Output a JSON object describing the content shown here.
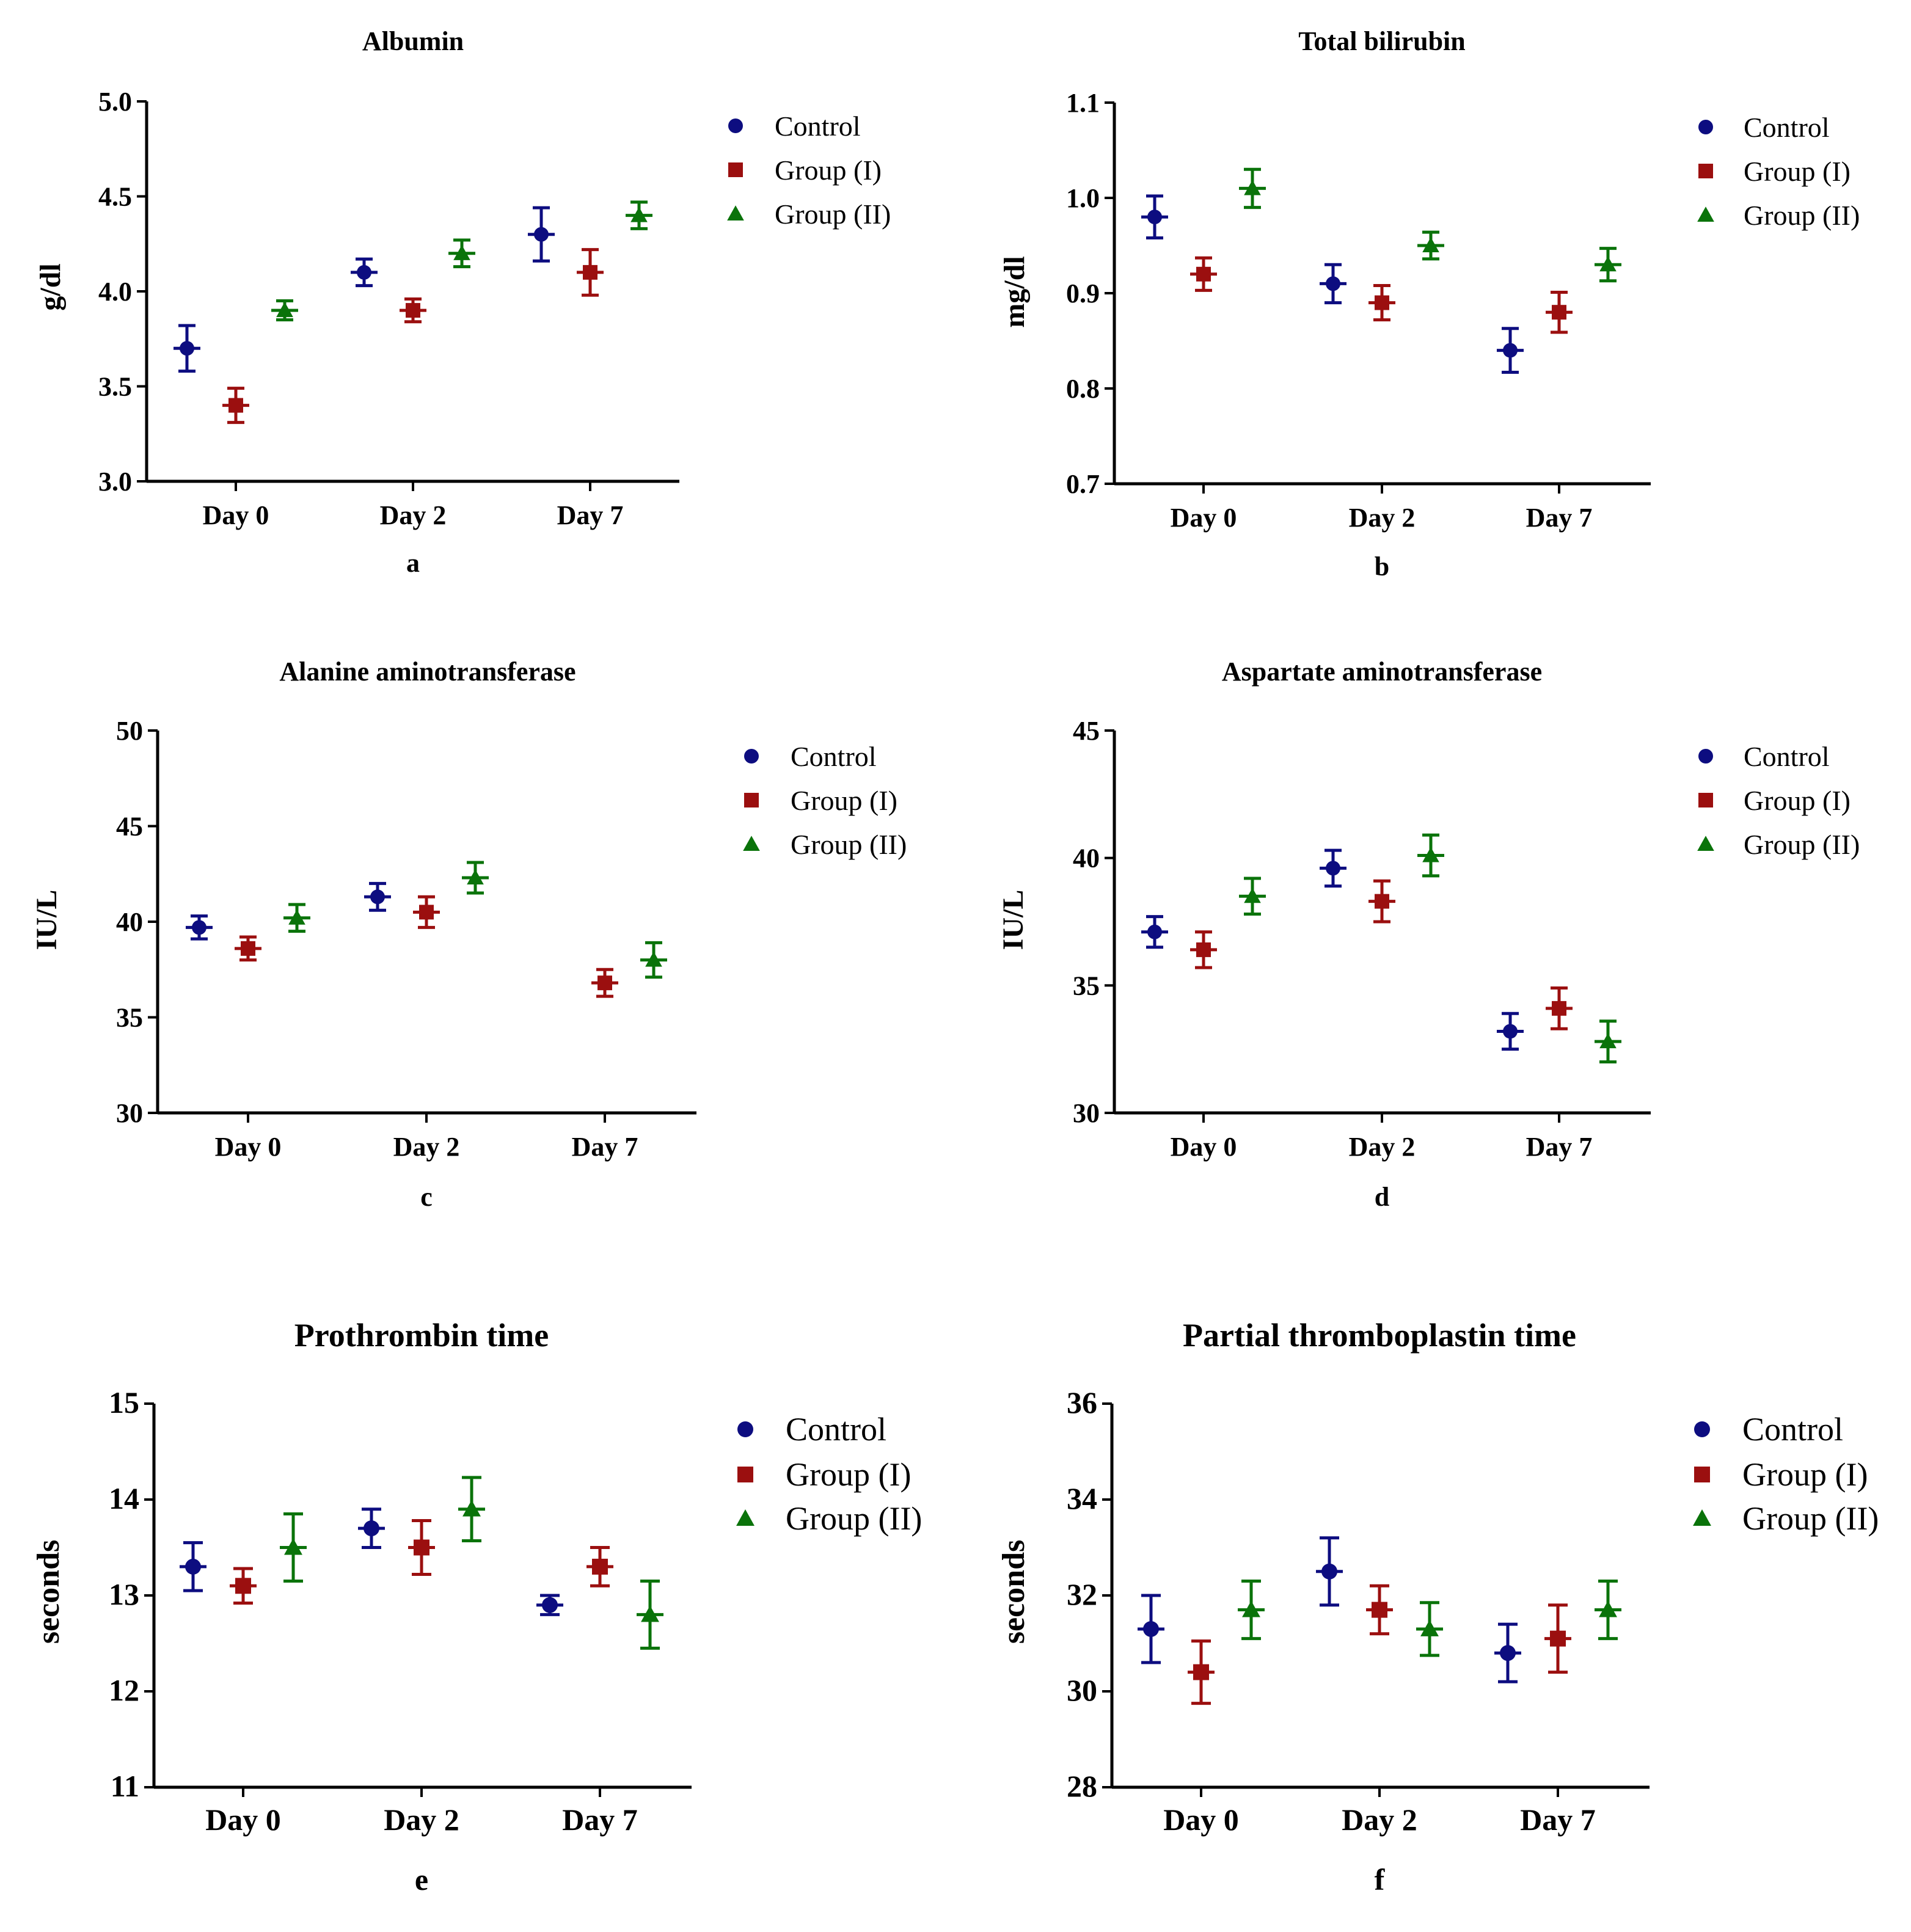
{
  "figure": {
    "background": "#ffffff"
  },
  "series_styles": [
    {
      "name": "Control",
      "color": "#0d0d80",
      "marker": "circle"
    },
    {
      "name": "Group (I)",
      "color": "#9b0f0f",
      "marker": "square"
    },
    {
      "name": "Group (II)",
      "color": "#0a730a",
      "marker": "triangle"
    }
  ],
  "chart_data": [
    {
      "type": "scatter",
      "panel_label": "a",
      "title": "Albumin",
      "xlabel": "",
      "ylabel": "g/dl",
      "categories": [
        "Day 0",
        "Day 2",
        "Day 7"
      ],
      "ylim": [
        3.0,
        5.0
      ],
      "yticks": [
        3.0,
        3.5,
        4.0,
        4.5,
        5.0
      ],
      "ytick_labels": [
        "3.0",
        "3.5",
        "4.0",
        "4.5",
        "5.0"
      ],
      "legend": [
        "Control",
        "Group (I)",
        "Group (II)"
      ],
      "series": [
        {
          "name": "Control",
          "values": [
            3.7,
            4.1,
            4.3
          ],
          "errors": [
            0.12,
            0.07,
            0.14
          ]
        },
        {
          "name": "Group (I)",
          "values": [
            3.4,
            3.9,
            4.1
          ],
          "errors": [
            0.09,
            0.06,
            0.12
          ]
        },
        {
          "name": "Group (II)",
          "values": [
            3.9,
            4.2,
            4.4
          ],
          "errors": [
            0.05,
            0.07,
            0.07
          ]
        }
      ]
    },
    {
      "type": "scatter",
      "panel_label": "b",
      "title": "Total bilirubin",
      "xlabel": "",
      "ylabel": "mg/dl",
      "categories": [
        "Day 0",
        "Day 2",
        "Day 7"
      ],
      "ylim": [
        0.7,
        1.1
      ],
      "yticks": [
        0.7,
        0.8,
        0.9,
        1.0,
        1.1
      ],
      "ytick_labels": [
        "0.7",
        "0.8",
        "0.9",
        "1.0",
        "1.1"
      ],
      "legend": [
        "Control",
        "Group (I)",
        "Group (II)"
      ],
      "series": [
        {
          "name": "Control",
          "values": [
            0.98,
            0.91,
            0.84
          ],
          "errors": [
            0.022,
            0.02,
            0.023
          ]
        },
        {
          "name": "Group (I)",
          "values": [
            0.92,
            0.89,
            0.88
          ],
          "errors": [
            0.017,
            0.018,
            0.021
          ]
        },
        {
          "name": "Group (II)",
          "values": [
            1.01,
            0.95,
            0.93
          ],
          "errors": [
            0.02,
            0.014,
            0.017
          ]
        }
      ]
    },
    {
      "type": "scatter",
      "panel_label": "c",
      "title": "Alanine aminotransferase",
      "xlabel": "",
      "ylabel": "IU/L",
      "categories": [
        "Day 0",
        "Day 2",
        "Day 7"
      ],
      "ylim": [
        30,
        50
      ],
      "yticks": [
        30,
        35,
        40,
        45,
        50
      ],
      "ytick_labels": [
        "30",
        "35",
        "40",
        "45",
        "50"
      ],
      "legend": [
        "Control",
        "Group (I)",
        "Group (II)"
      ],
      "series": [
        {
          "name": "Control",
          "values": [
            39.7,
            41.3,
            null
          ],
          "errors": [
            0.6,
            0.7,
            null
          ]
        },
        {
          "name": "Group (I)",
          "values": [
            38.6,
            40.5,
            36.8
          ],
          "errors": [
            0.6,
            0.8,
            0.7
          ]
        },
        {
          "name": "Group (II)",
          "values": [
            40.2,
            42.3,
            38.0
          ],
          "errors": [
            0.7,
            0.8,
            0.9
          ]
        }
      ]
    },
    {
      "type": "scatter",
      "panel_label": "d",
      "title": "Aspartate aminotransferase",
      "xlabel": "",
      "ylabel": "IU/L",
      "categories": [
        "Day 0",
        "Day 2",
        "Day 7"
      ],
      "ylim": [
        30,
        45
      ],
      "yticks": [
        30,
        35,
        40,
        45
      ],
      "ytick_labels": [
        "30",
        "35",
        "40",
        "45"
      ],
      "legend": [
        "Control",
        "Group (I)",
        "Group (II)"
      ],
      "series": [
        {
          "name": "Control",
          "values": [
            37.1,
            39.6,
            33.2
          ],
          "errors": [
            0.6,
            0.7,
            0.7
          ]
        },
        {
          "name": "Group (I)",
          "values": [
            36.4,
            38.3,
            34.1
          ],
          "errors": [
            0.7,
            0.8,
            0.8
          ]
        },
        {
          "name": "Group (II)",
          "values": [
            38.5,
            40.1,
            32.8
          ],
          "errors": [
            0.7,
            0.8,
            0.8
          ]
        }
      ]
    },
    {
      "type": "scatter",
      "panel_label": "e",
      "title": "Prothrombin time",
      "xlabel": "",
      "ylabel": "seconds",
      "categories": [
        "Day 0",
        "Day 2",
        "Day 7"
      ],
      "ylim": [
        11,
        15
      ],
      "yticks": [
        11,
        12,
        13,
        14,
        15
      ],
      "ytick_labels": [
        "11",
        "12",
        "13",
        "14",
        "15"
      ],
      "legend": [
        "Control",
        "Group (I)",
        "Group (II)"
      ],
      "series": [
        {
          "name": "Control",
          "values": [
            13.3,
            13.7,
            12.9
          ],
          "errors": [
            0.25,
            0.2,
            0.1
          ]
        },
        {
          "name": "Group (I)",
          "values": [
            13.1,
            13.5,
            13.3
          ],
          "errors": [
            0.18,
            0.28,
            0.2
          ]
        },
        {
          "name": "Group (II)",
          "values": [
            13.5,
            13.9,
            12.8
          ],
          "errors": [
            0.35,
            0.33,
            0.35
          ]
        }
      ]
    },
    {
      "type": "scatter",
      "panel_label": "f",
      "title": "Partial thromboplastin time",
      "xlabel": "",
      "ylabel": "seconds",
      "categories": [
        "Day 0",
        "Day 2",
        "Day 7"
      ],
      "ylim": [
        28,
        36
      ],
      "yticks": [
        28,
        30,
        32,
        34,
        36
      ],
      "ytick_labels": [
        "28",
        "30",
        "32",
        "34",
        "36"
      ],
      "legend": [
        "Control",
        "Group (I)",
        "Group (II)"
      ],
      "series": [
        {
          "name": "Control",
          "values": [
            31.3,
            32.5,
            30.8
          ],
          "errors": [
            0.7,
            0.7,
            0.6
          ]
        },
        {
          "name": "Group (I)",
          "values": [
            30.4,
            31.7,
            31.1
          ],
          "errors": [
            0.65,
            0.5,
            0.7
          ]
        },
        {
          "name": "Group (II)",
          "values": [
            31.7,
            31.3,
            31.7
          ],
          "errors": [
            0.6,
            0.55,
            0.6
          ]
        }
      ]
    }
  ]
}
